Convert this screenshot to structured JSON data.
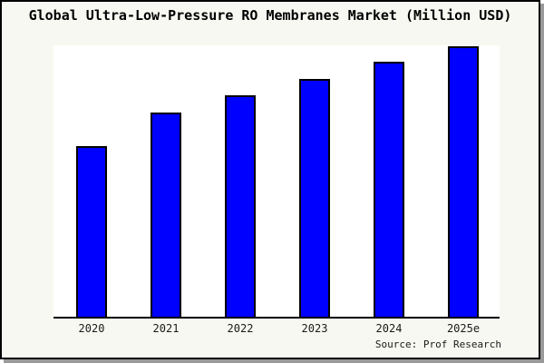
{
  "window": {
    "title": "Global Ultra-Low-Pressure RO Membranes Market (Million USD)"
  },
  "chart_data": {
    "type": "bar",
    "title": "Global Ultra-Low-Pressure RO Membranes Market (Million USD)",
    "xlabel": "",
    "ylabel": "",
    "categories": [
      "2020",
      "2021",
      "2022",
      "2023",
      "2024",
      "2025e"
    ],
    "values": [
      63,
      75.5,
      81.8,
      88,
      94.2,
      100
    ],
    "value_scale_note": "no y-axis ticks, gridlines or data labels visible; values estimated from bar heights as relative index with 2025e = 100",
    "ylim": [
      0,
      100
    ],
    "grid": false,
    "legend": false,
    "y_axis_visible": false,
    "bar_color": "#0000ff",
    "bar_edge_color": "#000000"
  },
  "footer": {
    "source_label": "Source: Prof Research"
  },
  "colors": {
    "figure_background": "#f8f8f2",
    "plot_background": "#ffffff",
    "bar_fill": "#0000ff",
    "frame_border": "#000000",
    "frame_shadow": "#9a9a9a",
    "text": "#000000"
  }
}
